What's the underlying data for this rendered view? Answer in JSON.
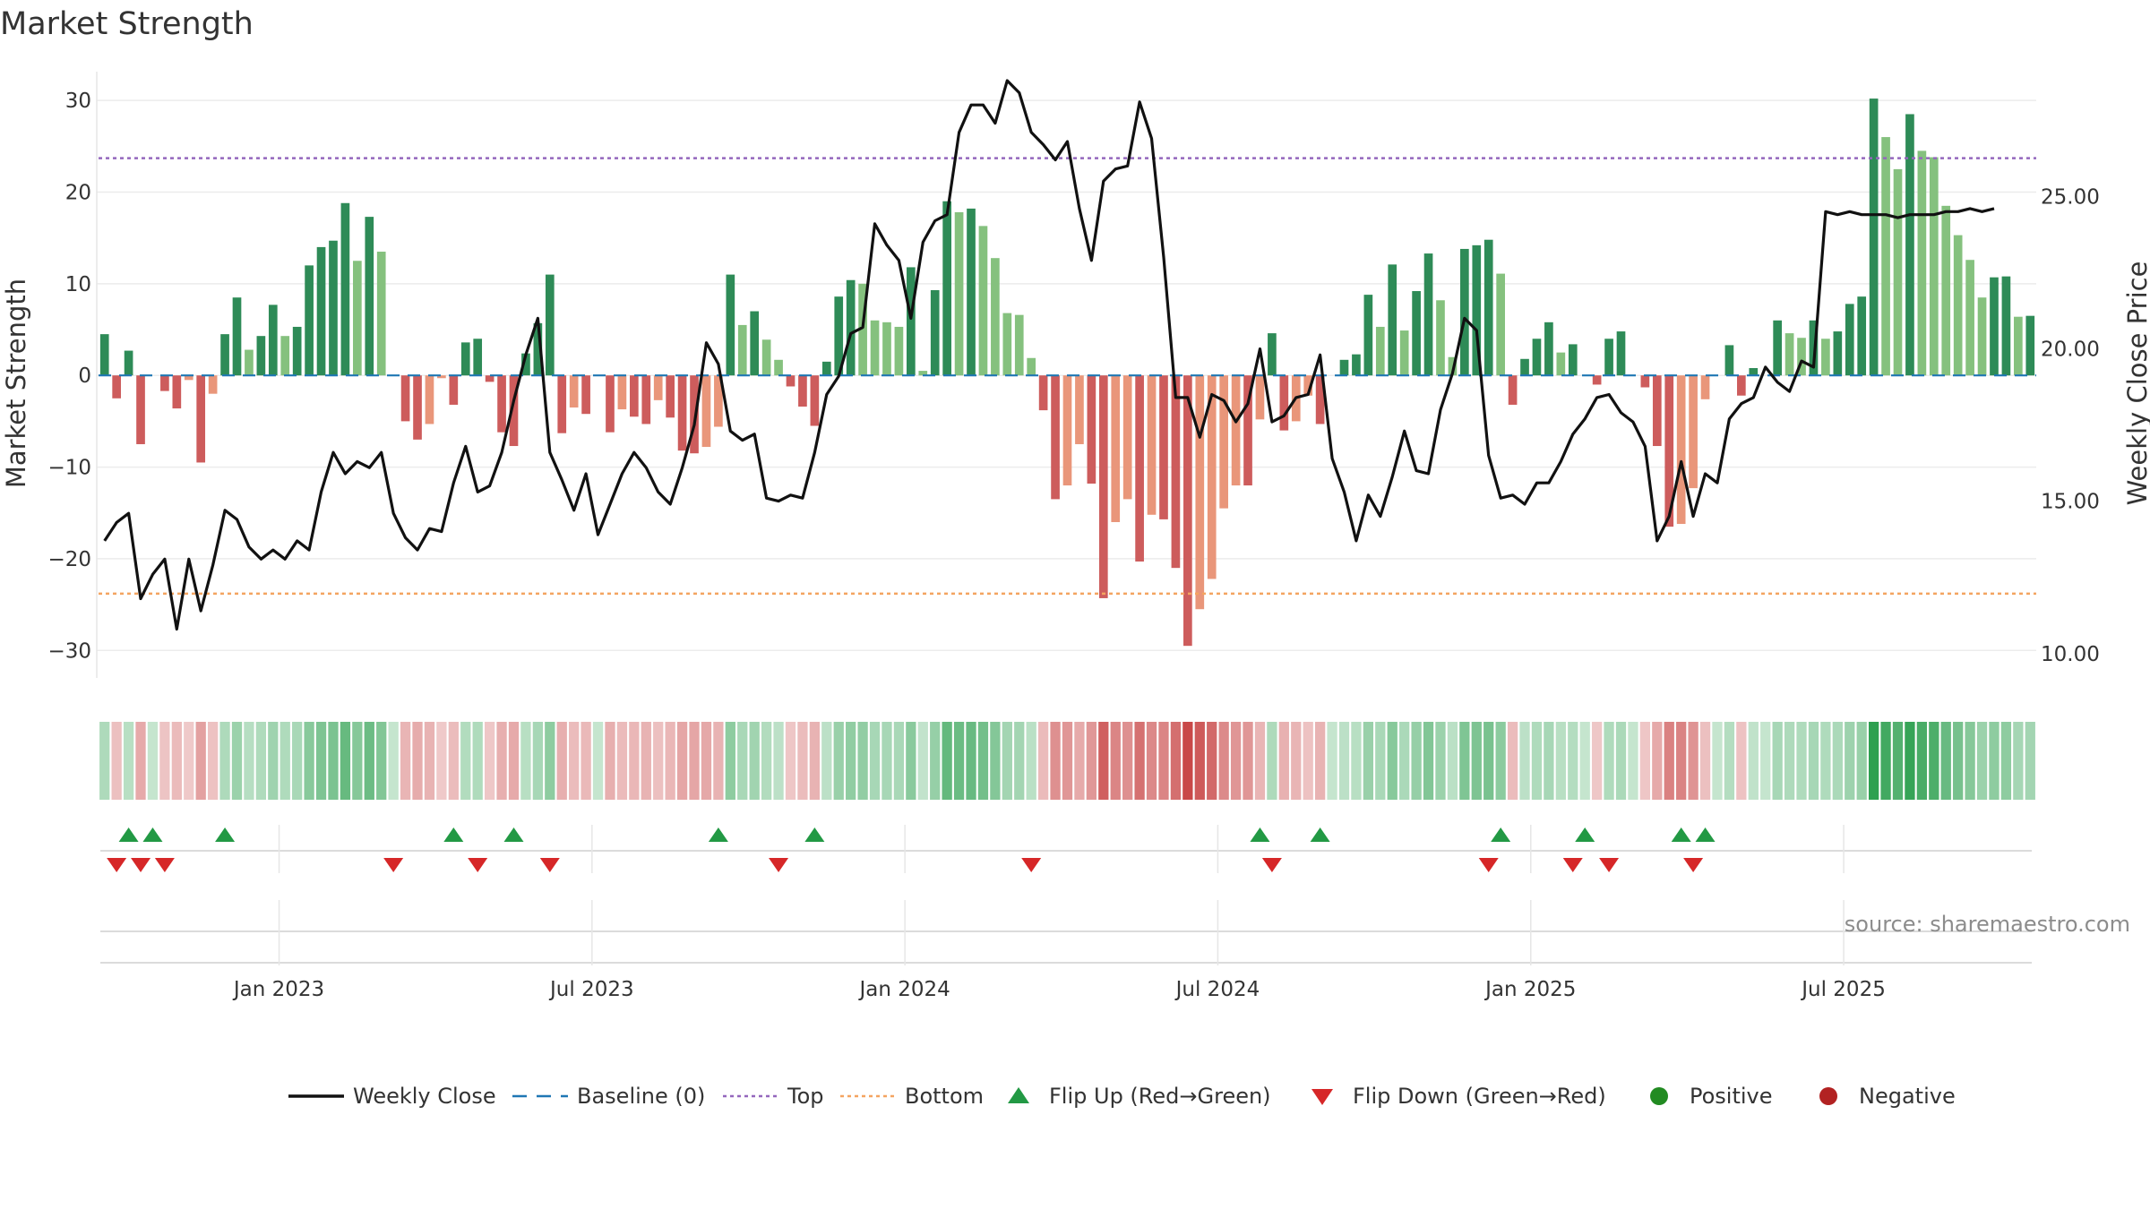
{
  "chart_data": {
    "type": "bar",
    "title": "Market Strength",
    "ylabel_left": "Market Strength",
    "ylabel_right": "Weekly Close Price",
    "source": "source: sharemaestro.com",
    "y_left_range": [
      -33,
      30.5
    ],
    "y_left_ticks": [
      30,
      20,
      10,
      0,
      -10,
      -20,
      -30
    ],
    "y_left_tick_labels": [
      "30",
      "20",
      "10",
      "0",
      "−10",
      "−20",
      "−30"
    ],
    "y_right_range": [
      9.2,
      28.3
    ],
    "y_right_ticks": [
      25,
      20,
      15,
      10
    ],
    "y_right_tick_labels": [
      "25.00",
      "20.00",
      "15.00",
      "10.00"
    ],
    "x_tick_labels": [
      "Jan 2023",
      "Jul 2023",
      "Jan 2024",
      "Jul 2024",
      "Jan 2025",
      "Jul 2025"
    ],
    "x_tick_week_index": [
      15,
      41,
      67,
      93,
      119,
      145
    ],
    "top_line": 23.7,
    "bottom_line": -23.8,
    "colors": {
      "pos_dark": "#2e8b57",
      "pos_light": "#85c17e",
      "neg_dark": "#cd5c5c",
      "neg_light": "#e9967a",
      "close_line": "#111111",
      "baseline": "#1f77b4",
      "top": "#9467bd",
      "bottom": "#f4a460",
      "flip_up": "#229944",
      "flip_down": "#d62728",
      "positive": "#228b22",
      "negative": "#b22222"
    },
    "series": [
      {
        "name": "Market Strength",
        "values": [
          4.5,
          -2.5,
          2.7,
          -7.5,
          0,
          -1.7,
          -3.6,
          -0.5,
          -9.5,
          -2,
          4.5,
          8.5,
          2.8,
          4.3,
          7.7,
          4.3,
          5.3,
          12,
          14,
          14.7,
          18.8,
          12.5,
          17.3,
          13.5,
          0,
          -5,
          -7,
          -5.3,
          -0.3,
          -3.2,
          3.6,
          4,
          -0.7,
          -6.2,
          -7.7,
          2.4,
          5.7,
          11,
          -6.3,
          -3.5,
          -4.2,
          0,
          -6.2,
          -3.7,
          -4.5,
          -5.3,
          -2.7,
          -4.6,
          -8.2,
          -8.5,
          -7.8,
          -5.6,
          11,
          5.5,
          7,
          3.9,
          1.7,
          -1.2,
          -3.4,
          -5.5,
          1.5,
          8.6,
          10.4,
          10,
          6,
          5.8,
          5.3,
          11.8,
          0.5,
          9.3,
          19,
          17.8,
          18.2,
          16.3,
          12.8,
          6.8,
          6.6,
          1.9,
          -3.8,
          -13.5,
          -12,
          -7.5,
          -11.8,
          -24.3,
          -16,
          -13.5,
          -20.3,
          -15.2,
          -15.7,
          -21,
          -29.5,
          -25.5,
          -22.2,
          -14.5,
          -12,
          -12,
          -4.8,
          4.6,
          -6,
          -5,
          -2.2,
          -5.3,
          0,
          1.7,
          2.3,
          8.8,
          5.3,
          12.1,
          4.9,
          9.2,
          13.3,
          8.2,
          2,
          13.8,
          14.2,
          14.8,
          11.1,
          -3.2,
          1.8,
          4,
          5.8,
          2.5,
          3.4,
          0,
          -1,
          4,
          4.8,
          0,
          -1.3,
          -7.7,
          -16.5,
          -16.2,
          -12.3,
          -2.6,
          0,
          3.3,
          -2.2,
          0.8,
          0,
          6,
          4.6,
          4.1,
          6,
          4,
          4.8,
          7.8,
          8.6,
          30.2,
          26,
          22.5,
          28.5,
          24.5,
          23.8,
          18.5,
          15.3,
          12.6,
          8.5,
          10.7,
          10.8,
          6.4,
          6.5
        ]
      },
      {
        "name": "Weekly Close",
        "values": [
          13.7,
          14.3,
          14.6,
          11.8,
          12.6,
          13.1,
          10.8,
          13.1,
          11.4,
          12.9,
          14.7,
          14.4,
          13.5,
          13.1,
          13.4,
          13.1,
          13.7,
          13.4,
          15.3,
          16.6,
          15.9,
          16.3,
          16.1,
          16.6,
          14.6,
          13.8,
          13.4,
          14.1,
          14,
          15.6,
          16.8,
          15.3,
          15.5,
          16.6,
          18.3,
          19.8,
          21,
          16.6,
          15.7,
          14.7,
          15.9,
          13.9,
          14.9,
          15.9,
          16.6,
          16.1,
          15.3,
          14.9,
          16.1,
          17.5,
          20.2,
          19.5,
          17.3,
          17,
          17.2,
          15.1,
          15,
          15.2,
          15.1,
          16.6,
          18.5,
          19.1,
          20.5,
          20.7,
          24.1,
          23.4,
          22.9,
          21,
          23.5,
          24.2,
          24.4,
          27.1,
          28,
          28,
          27.4,
          28.8,
          28.4,
          27.1,
          26.7,
          26.2,
          26.8,
          24.6,
          22.9,
          25.5,
          25.9,
          26,
          28.1,
          26.9,
          23,
          18.4,
          18.4,
          17.1,
          18.5,
          18.3,
          17.6,
          18.2,
          20,
          17.6,
          17.8,
          18.4,
          18.5,
          19.8,
          16.4,
          15.3,
          13.7,
          15.2,
          14.5,
          15.8,
          17.3,
          16,
          15.9,
          18,
          19.2,
          21,
          20.6,
          16.5,
          15.1,
          15.2,
          14.9,
          15.6,
          15.6,
          16.3,
          17.2,
          17.7,
          18.4,
          18.5,
          17.9,
          17.6,
          16.8,
          13.7,
          14.5,
          16.3,
          14.5,
          15.9,
          15.6,
          17.7,
          18.2,
          18.4,
          19.4,
          18.9,
          18.6,
          19.6,
          19.4,
          24.5,
          24.4,
          24.5,
          24.4,
          24.4,
          24.4,
          24.3,
          24.4,
          24.4,
          24.4,
          24.5,
          24.5,
          24.6,
          24.5,
          24.6
        ]
      }
    ],
    "flip_up_week_index": [
      2,
      4,
      10,
      29,
      34,
      51,
      59,
      96,
      101,
      116,
      123,
      131,
      133
    ],
    "flip_down_week_index": [
      1,
      3,
      5,
      24,
      31,
      37,
      56,
      77,
      97,
      115,
      122,
      125,
      132
    ],
    "legend": [
      {
        "key": "close",
        "label": "Weekly Close"
      },
      {
        "key": "baseline",
        "label": "Baseline (0)"
      },
      {
        "key": "top",
        "label": "Top"
      },
      {
        "key": "bottom",
        "label": "Bottom"
      },
      {
        "key": "flip_up",
        "label": "Flip Up (Red→Green)"
      },
      {
        "key": "flip_down",
        "label": "Flip Down (Green→Red)"
      },
      {
        "key": "positive",
        "label": "Positive"
      },
      {
        "key": "negative",
        "label": "Negative"
      }
    ]
  }
}
